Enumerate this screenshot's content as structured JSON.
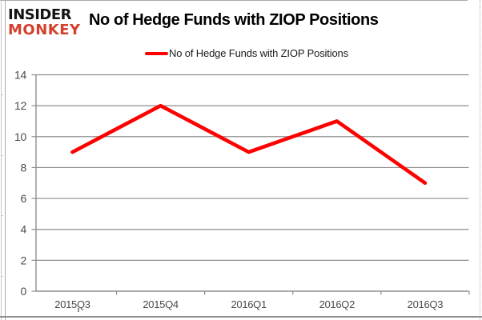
{
  "brand": {
    "line1": "INSIDER",
    "line2": "MONKEY"
  },
  "header": {
    "title": "No of Hedge Funds with ZIOP Positions"
  },
  "legend": {
    "label": "No of Hedge Funds with ZIOP Positions"
  },
  "chart_data": {
    "type": "line",
    "title": "No of Hedge Funds with ZIOP Positions",
    "categories": [
      "2015Q3",
      "2015Q4",
      "2016Q1",
      "2016Q2",
      "2016Q3"
    ],
    "series": [
      {
        "name": "No of Hedge Funds with ZIOP Positions",
        "values": [
          9,
          12,
          9,
          11,
          7
        ],
        "color": "#fe0000"
      }
    ],
    "xlabel": "",
    "ylabel": "",
    "ylim": [
      0,
      14
    ],
    "yticks": [
      0,
      2,
      4,
      6,
      8,
      10,
      12,
      14
    ],
    "grid": true,
    "legend_position": "top-center"
  },
  "colors": {
    "series_red": "#fe0000",
    "brand_red": "#d4402c",
    "gridline": "#8e8e8e",
    "axis_line": "#8e8e8e",
    "tick_label": "#4a4a4a",
    "background": "#ffffff"
  }
}
